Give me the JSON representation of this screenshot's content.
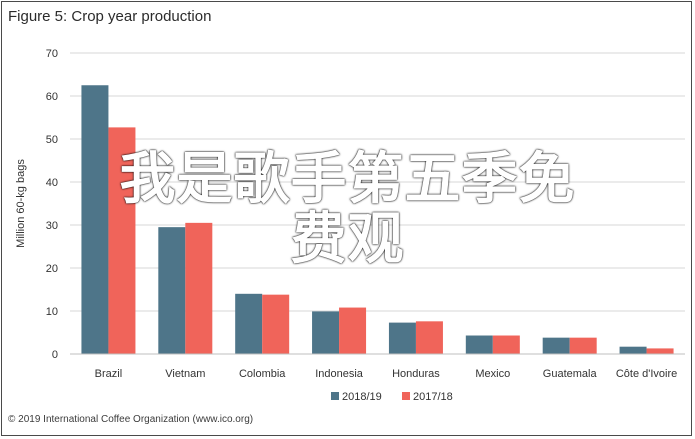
{
  "header": {
    "title": "Figure 5: Crop year production"
  },
  "footer": {
    "copyright": "© 2019 International Coffee Organization (www.ico.org)"
  },
  "overlay": {
    "line1": "我是歌手第五季免",
    "line2": "费观"
  },
  "colors": {
    "series1": "#4e7589",
    "series2": "#f0645a",
    "grid": "#d7d7d7",
    "axis": "#bfbfbf"
  },
  "chart_data": {
    "type": "bar",
    "title": "Figure 5: Crop year production",
    "ylabel": "Million 60-kg bags",
    "xlabel": "",
    "ylim": [
      0,
      70
    ],
    "yticks": [
      0,
      10,
      20,
      30,
      40,
      50,
      60,
      70
    ],
    "grid": true,
    "legend_position": "bottom",
    "categories": [
      "Brazil",
      "Vietnam",
      "Colombia",
      "Indonesia",
      "Honduras",
      "Mexico",
      "Guatemala",
      "Côte d'Ivoire"
    ],
    "series": [
      {
        "name": "2018/19",
        "values": [
          62.5,
          29.5,
          14.0,
          9.9,
          7.3,
          4.3,
          3.8,
          1.7
        ]
      },
      {
        "name": "2017/18",
        "values": [
          52.7,
          30.5,
          13.8,
          10.8,
          7.6,
          4.3,
          3.8,
          1.3
        ]
      }
    ]
  }
}
